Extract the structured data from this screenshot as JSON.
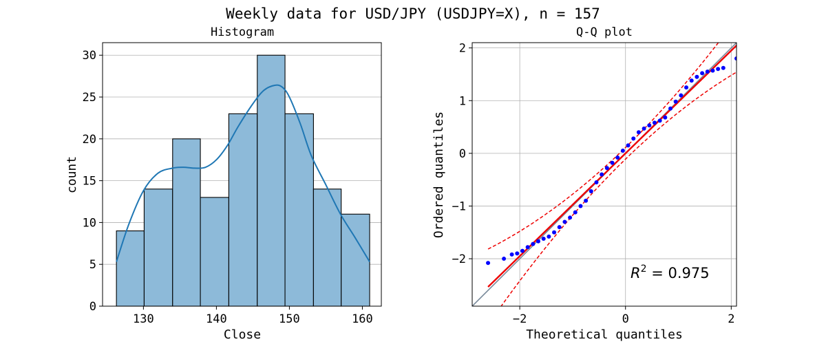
{
  "suptitle": "Weekly data for USD/JPY (USDJPY=X), n = 157",
  "chart_data": [
    {
      "type": "bar",
      "title": "Histogram",
      "xlabel": "Close",
      "ylabel": "count",
      "xlim": [
        124.4,
        162.6
      ],
      "ylim": [
        0,
        31.5
      ],
      "xticks": [
        130,
        140,
        150,
        160
      ],
      "yticks": [
        0,
        5,
        10,
        15,
        20,
        25,
        30
      ],
      "grid": "y",
      "bins": [
        {
          "start": 126.3,
          "end": 130.1,
          "count": 9
        },
        {
          "start": 130.1,
          "end": 134.0,
          "count": 14
        },
        {
          "start": 134.0,
          "end": 137.8,
          "count": 20
        },
        {
          "start": 137.8,
          "end": 141.7,
          "count": 13
        },
        {
          "start": 141.7,
          "end": 145.6,
          "count": 23
        },
        {
          "start": 145.6,
          "end": 149.4,
          "count": 30
        },
        {
          "start": 149.4,
          "end": 153.3,
          "count": 23
        },
        {
          "start": 153.3,
          "end": 157.1,
          "count": 14
        },
        {
          "start": 157.1,
          "end": 161.0,
          "count": 11
        }
      ],
      "kde": {
        "x": [
          126.3,
          128,
          130,
          132,
          134,
          135.5,
          137,
          138.5,
          140,
          141.5,
          143,
          145,
          146.5,
          148,
          149,
          150,
          151.5,
          153,
          155,
          157,
          159,
          161
        ],
        "y": [
          5.3,
          9.8,
          13.8,
          15.9,
          16.5,
          16.6,
          16.5,
          16.6,
          17.5,
          19.2,
          21.5,
          24.2,
          25.8,
          26.4,
          26.2,
          25.0,
          21.8,
          18.0,
          14.5,
          11.0,
          8.2,
          5.3
        ]
      },
      "bar_color": "#8dbad9",
      "kde_color": "#1f77b4"
    },
    {
      "type": "scatter",
      "title": "Q-Q plot",
      "xlabel": "Theoretical quantiles",
      "ylabel": "Ordered quantiles",
      "xlim": [
        -2.9,
        2.1
      ],
      "ylim": [
        -2.9,
        2.1
      ],
      "xticks": [
        -2,
        0,
        2
      ],
      "yticks": [
        -2,
        -1,
        0,
        1,
        2
      ],
      "grid": "both",
      "fit_line": {
        "slope": 0.975,
        "intercept": 0.0
      },
      "annotation": {
        "r2": "0.975"
      },
      "points": {
        "x": [
          -2.6,
          -2.3,
          -2.15,
          -2.05,
          -1.95,
          -1.85,
          -1.75,
          -1.65,
          -1.55,
          -1.45,
          -1.35,
          -1.25,
          -1.15,
          -1.05,
          -0.95,
          -0.85,
          -0.75,
          -0.65,
          -0.55,
          -0.45,
          -0.35,
          -0.25,
          -0.15,
          -0.05,
          0.05,
          0.15,
          0.25,
          0.35,
          0.45,
          0.55,
          0.65,
          0.75,
          0.85,
          0.95,
          1.05,
          1.15,
          1.25,
          1.35,
          1.45,
          1.55,
          1.65,
          1.75,
          1.85,
          2.1
        ],
        "y": [
          -2.08,
          -2.0,
          -1.92,
          -1.9,
          -1.85,
          -1.78,
          -1.72,
          -1.67,
          -1.62,
          -1.58,
          -1.5,
          -1.4,
          -1.3,
          -1.22,
          -1.12,
          -1.0,
          -0.9,
          -0.72,
          -0.55,
          -0.4,
          -0.28,
          -0.18,
          -0.08,
          0.05,
          0.15,
          0.28,
          0.4,
          0.47,
          0.53,
          0.58,
          0.62,
          0.68,
          0.85,
          0.98,
          1.1,
          1.25,
          1.38,
          1.45,
          1.52,
          1.55,
          1.57,
          1.6,
          1.62,
          1.8
        ]
      },
      "colors": {
        "points": "#0000ff",
        "fit": "#ee0000",
        "band": "#ee0000",
        "ref": "#778899"
      }
    }
  ]
}
